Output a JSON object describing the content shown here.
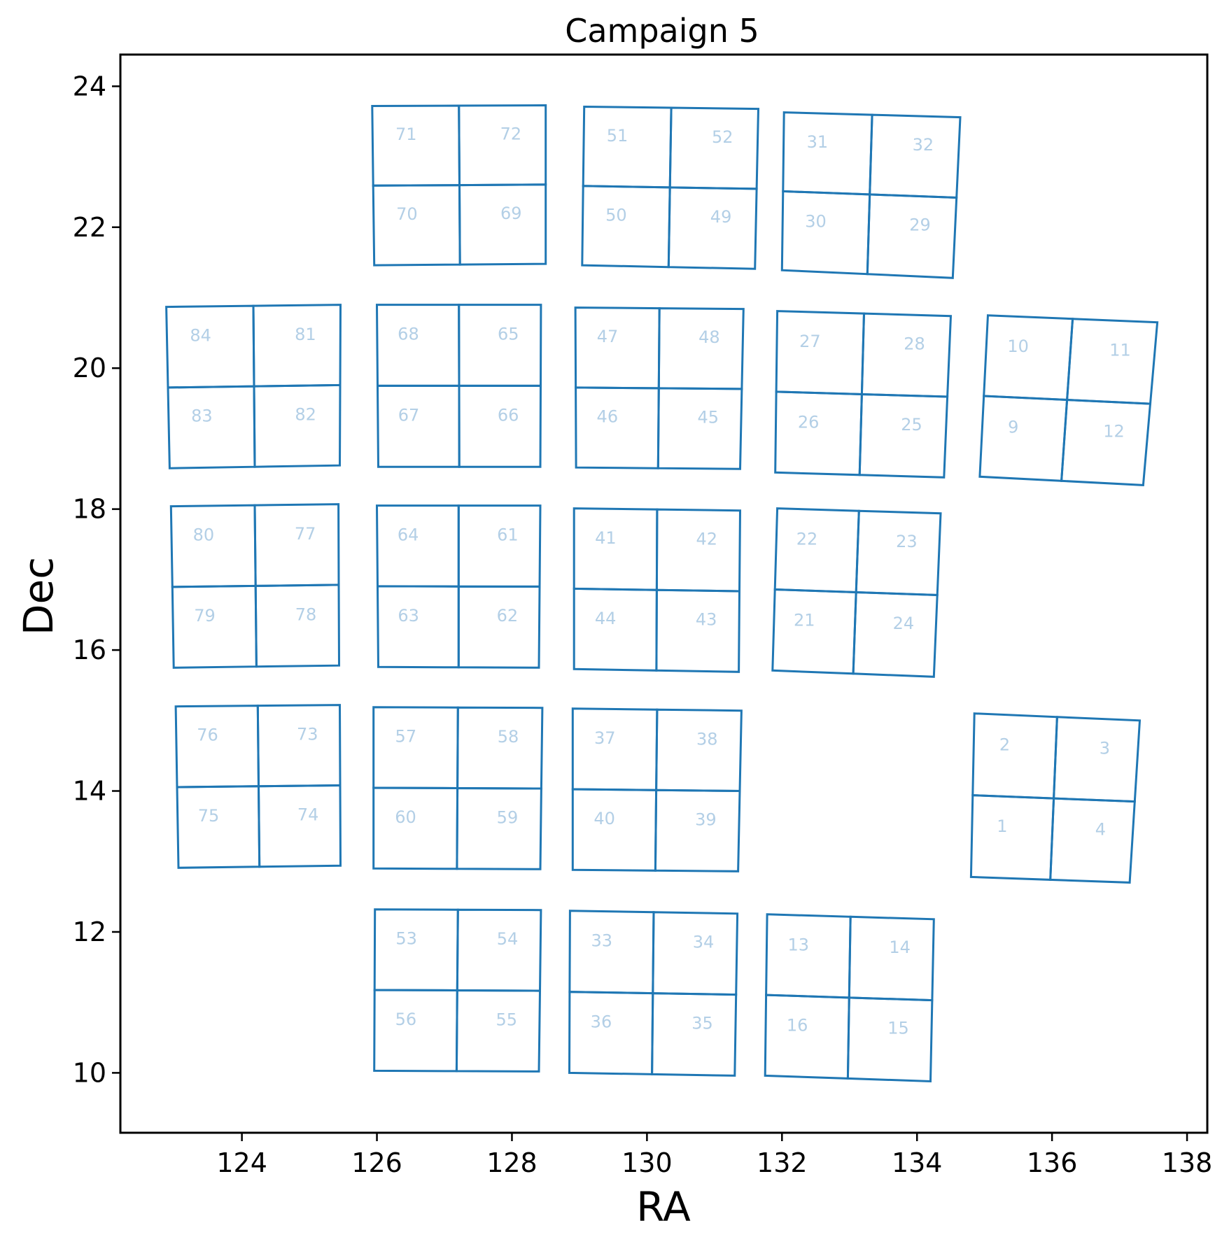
{
  "chart_data": {
    "type": "scatter",
    "title": "Campaign 5",
    "xlabel": "RA",
    "ylabel": "Dec",
    "xlim": [
      122.2,
      138.3
    ],
    "ylim": [
      9.15,
      24.45
    ],
    "xticks": [
      124,
      126,
      128,
      130,
      132,
      134,
      136,
      138
    ],
    "yticks": [
      10,
      12,
      14,
      16,
      18,
      20,
      22,
      24
    ],
    "grid": false,
    "colors": {
      "outline": "#1f77b4",
      "label": "#b3cfe6",
      "axes": "#000000"
    },
    "modules": [
      {
        "channels": [
          "71",
          "72",
          "70",
          "69"
        ],
        "corners": [
          [
            125.93,
            23.72
          ],
          [
            128.5,
            23.73
          ],
          [
            128.5,
            21.48
          ],
          [
            125.96,
            21.46
          ]
        ]
      },
      {
        "channels": [
          "51",
          "52",
          "50",
          "49"
        ],
        "corners": [
          [
            129.07,
            23.71
          ],
          [
            131.65,
            23.68
          ],
          [
            131.6,
            21.41
          ],
          [
            129.04,
            21.46
          ]
        ]
      },
      {
        "channels": [
          "31",
          "32",
          "30",
          "29"
        ],
        "corners": [
          [
            132.03,
            23.63
          ],
          [
            134.64,
            23.56
          ],
          [
            134.53,
            21.28
          ],
          [
            132.0,
            21.39
          ]
        ]
      },
      {
        "channels": [
          "84",
          "81",
          "83",
          "82"
        ],
        "corners": [
          [
            122.88,
            20.87
          ],
          [
            125.46,
            20.9
          ],
          [
            125.45,
            18.62
          ],
          [
            122.93,
            18.58
          ]
        ]
      },
      {
        "channels": [
          "68",
          "65",
          "67",
          "66"
        ],
        "corners": [
          [
            126.0,
            20.9
          ],
          [
            128.43,
            20.9
          ],
          [
            128.42,
            18.6
          ],
          [
            126.02,
            18.6
          ]
        ]
      },
      {
        "channels": [
          "47",
          "48",
          "46",
          "45"
        ],
        "corners": [
          [
            128.94,
            20.86
          ],
          [
            131.43,
            20.84
          ],
          [
            131.38,
            18.57
          ],
          [
            128.95,
            18.59
          ]
        ]
      },
      {
        "channels": [
          "27",
          "28",
          "26",
          "25"
        ],
        "corners": [
          [
            131.93,
            20.81
          ],
          [
            134.5,
            20.74
          ],
          [
            134.4,
            18.45
          ],
          [
            131.9,
            18.52
          ]
        ]
      },
      {
        "channels": [
          "10",
          "11",
          "9",
          "12"
        ],
        "corners": [
          [
            135.05,
            20.75
          ],
          [
            137.56,
            20.65
          ],
          [
            137.35,
            18.34
          ],
          [
            134.93,
            18.46
          ]
        ]
      },
      {
        "channels": [
          "80",
          "77",
          "79",
          "78"
        ],
        "corners": [
          [
            122.95,
            18.04
          ],
          [
            125.43,
            18.07
          ],
          [
            125.44,
            15.78
          ],
          [
            122.99,
            15.75
          ]
        ]
      },
      {
        "channels": [
          "64",
          "61",
          "63",
          "62"
        ],
        "corners": [
          [
            126.0,
            18.05
          ],
          [
            128.42,
            18.05
          ],
          [
            128.4,
            15.75
          ],
          [
            126.02,
            15.76
          ]
        ]
      },
      {
        "channels": [
          "41",
          "42",
          "44",
          "43"
        ],
        "corners": [
          [
            128.92,
            18.01
          ],
          [
            131.38,
            17.98
          ],
          [
            131.36,
            15.69
          ],
          [
            128.92,
            15.73
          ]
        ]
      },
      {
        "channels": [
          "22",
          "23",
          "21",
          "24"
        ],
        "corners": [
          [
            131.93,
            18.01
          ],
          [
            134.35,
            17.94
          ],
          [
            134.25,
            15.62
          ],
          [
            131.86,
            15.71
          ]
        ]
      },
      {
        "channels": [
          "76",
          "73",
          "75",
          "74"
        ],
        "corners": [
          [
            123.02,
            15.2
          ],
          [
            125.45,
            15.22
          ],
          [
            125.46,
            12.94
          ],
          [
            123.06,
            12.91
          ]
        ]
      },
      {
        "channels": [
          "57",
          "58",
          "60",
          "59"
        ],
        "corners": [
          [
            125.95,
            15.19
          ],
          [
            128.45,
            15.18
          ],
          [
            128.42,
            12.89
          ],
          [
            125.95,
            12.9
          ]
        ]
      },
      {
        "channels": [
          "37",
          "38",
          "40",
          "39"
        ],
        "corners": [
          [
            128.9,
            15.17
          ],
          [
            131.4,
            15.14
          ],
          [
            131.35,
            12.86
          ],
          [
            128.9,
            12.88
          ]
        ]
      },
      {
        "channels": [
          "2",
          "3",
          "1",
          "4"
        ],
        "corners": [
          [
            134.85,
            15.1
          ],
          [
            137.3,
            15.0
          ],
          [
            137.15,
            12.7
          ],
          [
            134.8,
            12.78
          ]
        ]
      },
      {
        "channels": [
          "53",
          "54",
          "56",
          "55"
        ],
        "corners": [
          [
            125.97,
            12.32
          ],
          [
            128.43,
            12.31
          ],
          [
            128.4,
            10.02
          ],
          [
            125.96,
            10.03
          ]
        ]
      },
      {
        "channels": [
          "33",
          "34",
          "36",
          "35"
        ],
        "corners": [
          [
            128.86,
            12.3
          ],
          [
            131.34,
            12.26
          ],
          [
            131.3,
            9.96
          ],
          [
            128.85,
            10.0
          ]
        ]
      },
      {
        "channels": [
          "13",
          "14",
          "16",
          "15"
        ],
        "corners": [
          [
            131.78,
            12.25
          ],
          [
            134.25,
            12.18
          ],
          [
            134.2,
            9.88
          ],
          [
            131.75,
            9.96
          ]
        ]
      }
    ]
  }
}
